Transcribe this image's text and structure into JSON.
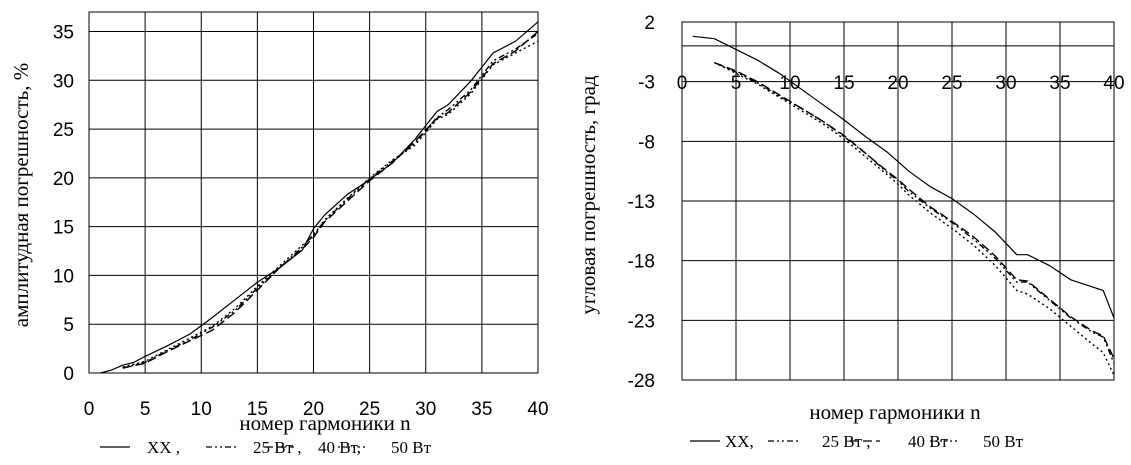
{
  "chart_data": [
    {
      "type": "line",
      "xlabel": "номер гармоники  n",
      "ylabel": "амплитудная погрешность, %",
      "xlim": [
        0,
        40
      ],
      "ylim": [
        0,
        37
      ],
      "xticks": [
        "0",
        "5",
        "10",
        "15",
        "20",
        "25",
        "30",
        "35",
        "40"
      ],
      "yticks": [
        "0",
        "5",
        "10",
        "15",
        "20",
        "25",
        "30",
        "35"
      ],
      "grid": true,
      "legend_placement": "bottom",
      "series": [
        {
          "name": "XX ,",
          "style": "solid",
          "x": [
            1,
            2,
            3,
            4,
            5,
            7,
            9,
            11,
            13,
            15,
            17,
            19,
            20,
            21,
            23,
            25,
            27,
            29,
            31,
            32,
            34,
            36,
            38,
            40
          ],
          "y": [
            0,
            0.3,
            0.8,
            1.1,
            1.7,
            2.8,
            4.0,
            5.7,
            7.5,
            9.3,
            10.8,
            12.6,
            14.8,
            16.2,
            18.3,
            19.8,
            21.5,
            23.9,
            26.8,
            27.5,
            29.9,
            32.8,
            34.0,
            36.0
          ]
        },
        {
          "name": "25 Вт ,",
          "style": "dashdotdot",
          "x": [
            3,
            5,
            7,
            9,
            11,
            13,
            15,
            17,
            19,
            20,
            21,
            23,
            25,
            27,
            29,
            31,
            32,
            34,
            36,
            38,
            40
          ],
          "y": [
            0.5,
            1.1,
            2.3,
            3.4,
            4.7,
            6.4,
            8.7,
            10.8,
            12.9,
            14.2,
            15.6,
            17.8,
            19.9,
            21.7,
            23.5,
            26.2,
            27.0,
            29.0,
            32.0,
            33.2,
            34.8
          ]
        },
        {
          "name": "40 Вт,",
          "style": "dashed",
          "x": [
            3,
            5,
            7,
            9,
            11,
            13,
            15,
            17,
            19,
            20,
            21,
            23,
            25,
            27,
            29,
            31,
            32,
            34,
            36,
            38,
            40
          ],
          "y": [
            0.5,
            1.0,
            2.2,
            3.3,
            4.4,
            6.2,
            8.5,
            10.8,
            12.7,
            13.9,
            15.5,
            17.6,
            19.7,
            21.5,
            23.7,
            26.1,
            26.7,
            28.8,
            31.7,
            33.0,
            35.0
          ]
        },
        {
          "name": "50 Вт",
          "style": "dotted",
          "x": [
            3,
            5,
            7,
            9,
            11,
            13,
            15,
            17,
            19,
            20,
            21,
            23,
            25,
            27,
            29,
            31,
            32,
            34,
            36,
            38,
            40
          ],
          "y": [
            0.6,
            1.2,
            2.4,
            3.6,
            4.8,
            6.6,
            8.9,
            11.0,
            13.1,
            14.0,
            15.7,
            17.9,
            20.0,
            21.8,
            23.3,
            26.0,
            26.5,
            28.6,
            31.6,
            32.8,
            34.0
          ]
        }
      ]
    },
    {
      "type": "line",
      "xlabel": "номер гармоники  n",
      "ylabel": "угловая погрешность, град",
      "xlim": [
        0,
        40
      ],
      "ylim": [
        -28,
        2
      ],
      "xticks": [
        "0",
        "5",
        "10",
        "15",
        "20",
        "25",
        "30",
        "35",
        "40"
      ],
      "yticks": [
        "2",
        "-3",
        "-8",
        "-13",
        "-18",
        "-23",
        "-28"
      ],
      "x_axis_at_y": 0,
      "grid": true,
      "legend_placement": "bottom",
      "series": [
        {
          "name": "XX,",
          "style": "solid",
          "x": [
            1,
            3,
            5,
            7,
            9,
            11,
            13,
            15,
            17,
            19,
            20,
            21,
            23,
            25,
            27,
            29,
            31,
            32,
            34,
            36,
            38,
            39,
            40
          ],
          "y": [
            0.8,
            0.6,
            -0.3,
            -1.2,
            -2.3,
            -3.6,
            -4.9,
            -6.2,
            -7.6,
            -8.9,
            -9.7,
            -10.5,
            -11.8,
            -12.8,
            -14.1,
            -15.6,
            -17.5,
            -17.5,
            -18.4,
            -19.6,
            -20.2,
            -20.5,
            -22.8
          ]
        },
        {
          "name": "25 Вт ,",
          "style": "dashdotdot",
          "x": [
            3,
            5,
            7,
            9,
            11,
            13,
            15,
            17,
            19,
            20,
            21,
            23,
            25,
            27,
            29,
            31,
            32,
            34,
            36,
            38,
            39,
            40
          ],
          "y": [
            -1.4,
            -2.2,
            -3.1,
            -4.2,
            -5.2,
            -6.3,
            -7.6,
            -9.0,
            -10.6,
            -11.3,
            -12.2,
            -13.6,
            -14.8,
            -16.2,
            -17.8,
            -19.8,
            -19.8,
            -21.3,
            -22.8,
            -24.0,
            -24.4,
            -26.6
          ]
        },
        {
          "name": "40 Вт",
          "style": "dashed",
          "x": [
            3,
            5,
            7,
            9,
            11,
            13,
            15,
            17,
            19,
            20,
            21,
            23,
            25,
            27,
            29,
            31,
            32,
            34,
            36,
            38,
            39,
            40
          ],
          "y": [
            -1.4,
            -2.1,
            -3.0,
            -4.1,
            -5.2,
            -6.3,
            -7.5,
            -9.0,
            -10.5,
            -11.2,
            -12.0,
            -13.5,
            -14.7,
            -16.0,
            -17.6,
            -19.6,
            -19.7,
            -21.2,
            -22.7,
            -23.9,
            -24.3,
            -26.2
          ]
        },
        {
          "name": "50 Вт",
          "style": "dotted",
          "x": [
            3,
            5,
            7,
            9,
            11,
            13,
            15,
            17,
            19,
            20,
            21,
            23,
            25,
            27,
            29,
            31,
            32,
            34,
            36,
            38,
            39,
            40
          ],
          "y": [
            -1.4,
            -2.3,
            -3.2,
            -4.3,
            -5.4,
            -6.5,
            -7.8,
            -9.3,
            -10.8,
            -11.6,
            -12.5,
            -14.0,
            -15.3,
            -16.7,
            -18.4,
            -20.5,
            -20.8,
            -22.0,
            -23.5,
            -25.0,
            -25.7,
            -27.6
          ]
        }
      ]
    }
  ]
}
